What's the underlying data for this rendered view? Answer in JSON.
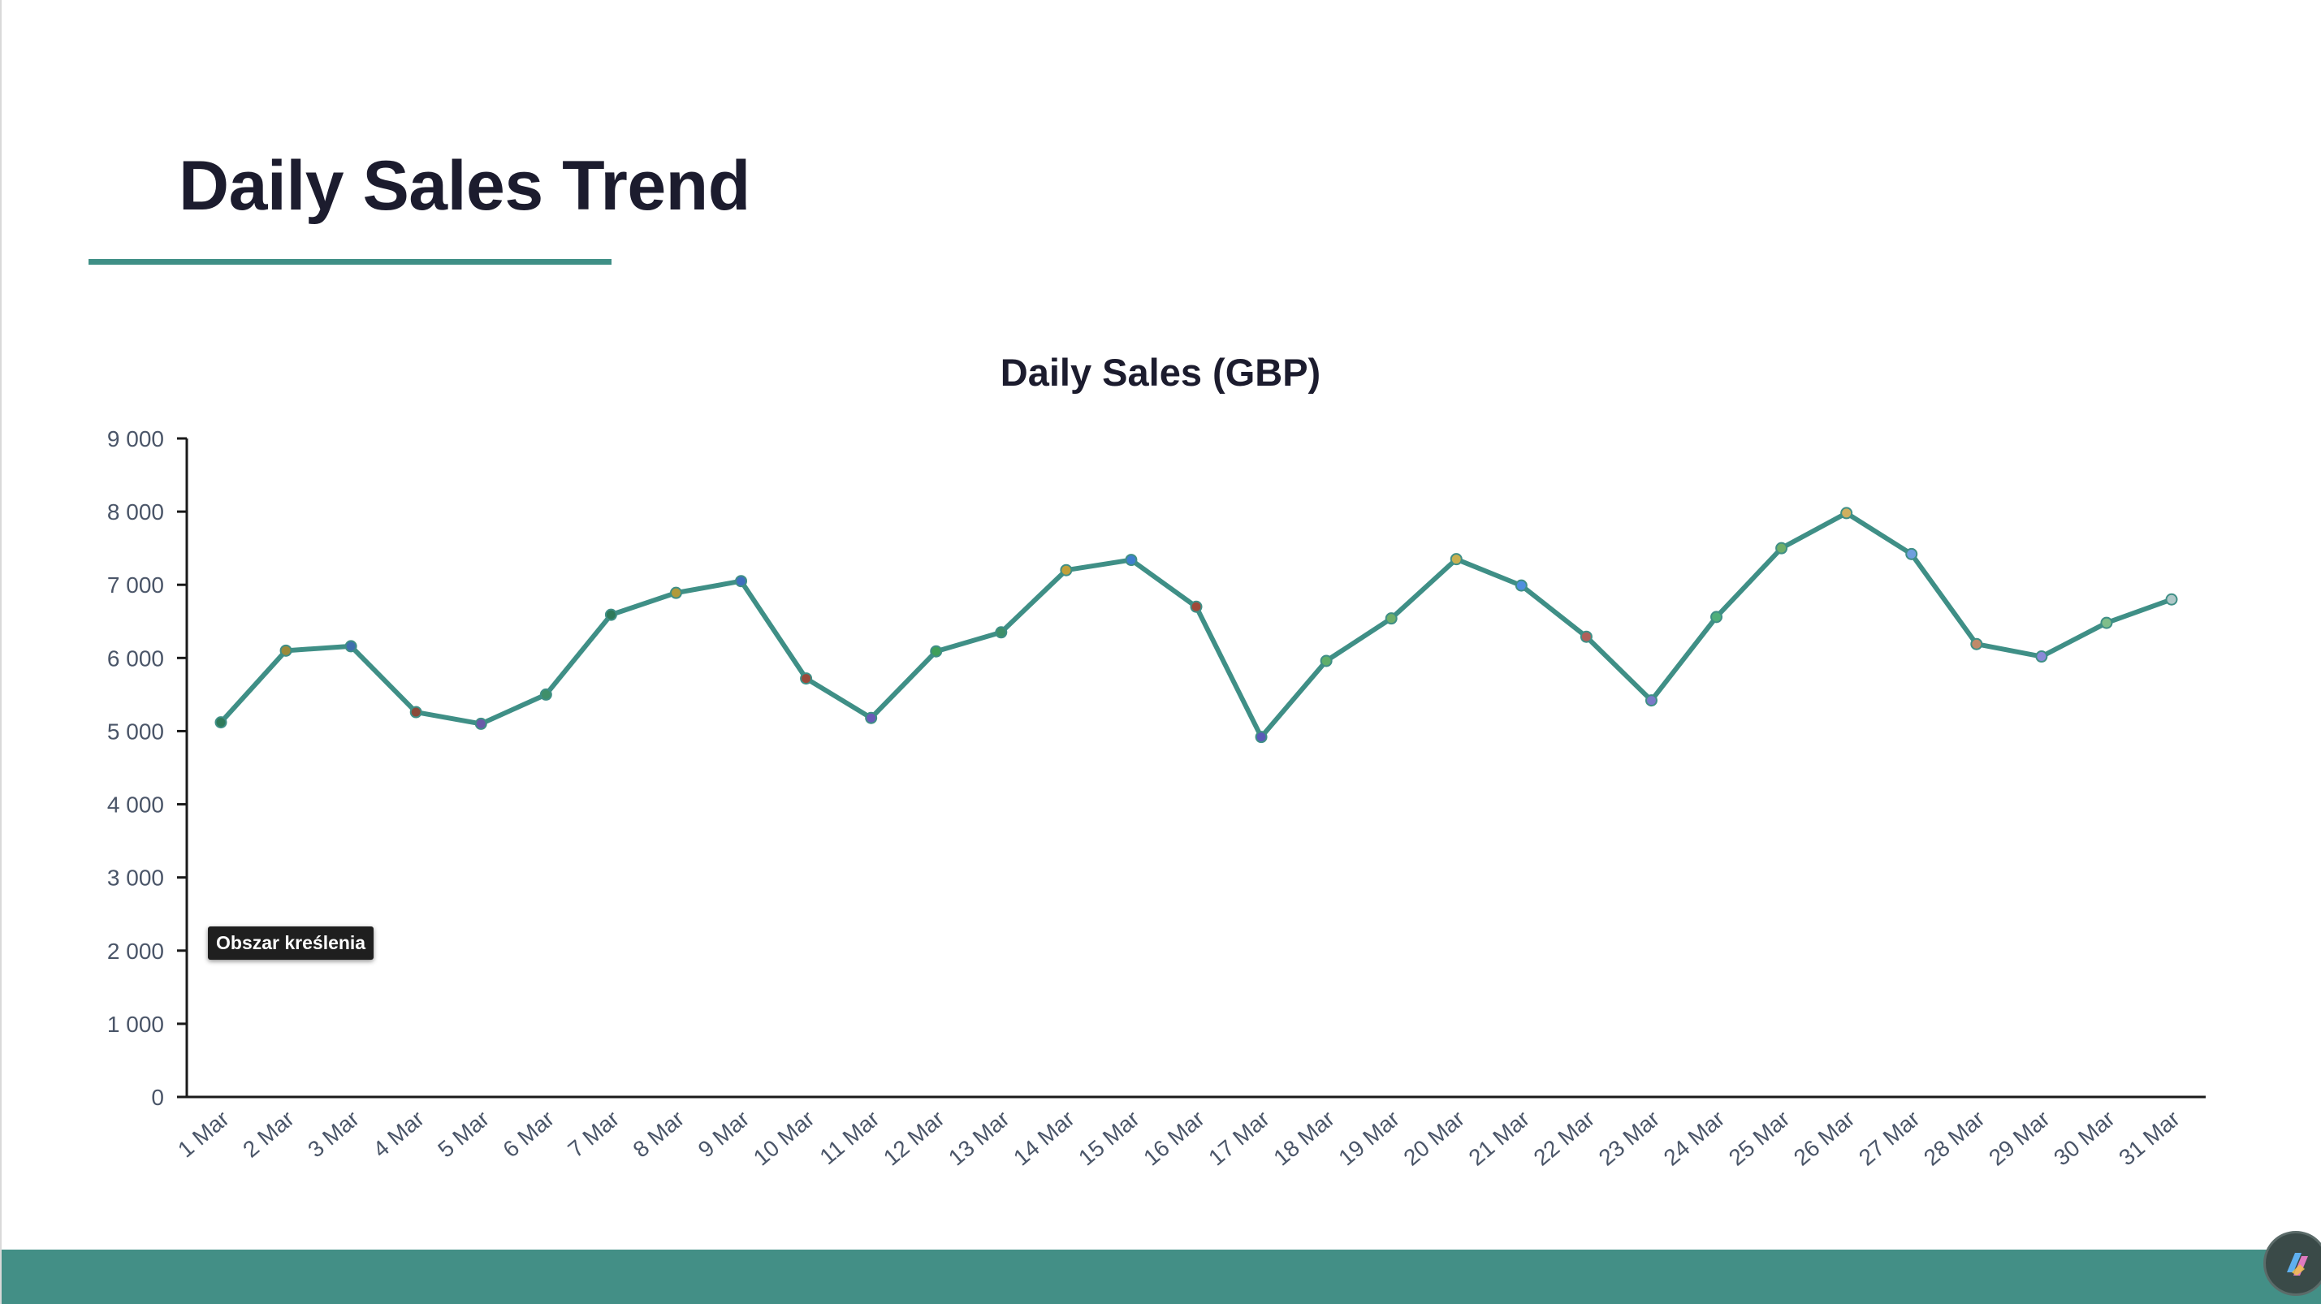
{
  "slide": {
    "title": "Daily Sales Trend",
    "accent_color": "#3f8f86",
    "footer_color": "#438f86"
  },
  "tooltip": {
    "text": "Obszar kreślenia"
  },
  "chart_data": {
    "type": "line",
    "title": "Daily Sales (GBP)",
    "xlabel": "",
    "ylabel": "",
    "ylim": [
      0,
      9000
    ],
    "yticks": [
      0,
      1000,
      2000,
      3000,
      4000,
      5000,
      6000,
      7000,
      8000,
      9000
    ],
    "ytick_labels": [
      "0",
      "1 000",
      "2 000",
      "3 000",
      "4 000",
      "5 000",
      "6 000",
      "7 000",
      "8 000",
      "9 000"
    ],
    "grid": false,
    "legend": "none",
    "line_color": "#3f8f86",
    "categories": [
      "1 Mar",
      "2 Mar",
      "3 Mar",
      "4 Mar",
      "5 Mar",
      "6 Mar",
      "7 Mar",
      "8 Mar",
      "9 Mar",
      "10 Mar",
      "11 Mar",
      "12 Mar",
      "13 Mar",
      "14 Mar",
      "15 Mar",
      "16 Mar",
      "17 Mar",
      "18 Mar",
      "19 Mar",
      "20 Mar",
      "21 Mar",
      "22 Mar",
      "23 Mar",
      "24 Mar",
      "25 Mar",
      "26 Mar",
      "27 Mar",
      "28 Mar",
      "29 Mar",
      "30 Mar",
      "31 Mar"
    ],
    "series": [
      {
        "values": [
          5120,
          6100,
          6160,
          5260,
          5100,
          5500,
          6590,
          6890,
          7050,
          5720,
          5180,
          6090,
          6350,
          7200,
          7340,
          6700,
          4920,
          5960,
          6540,
          7350,
          6990,
          6290,
          5420,
          6560,
          7500,
          7980,
          7420,
          6190,
          6020,
          6480,
          6800
        ],
        "marker_colors": [
          "#2f7a5a",
          "#9a8a3a",
          "#3f6fae",
          "#8a4a3a",
          "#6a5aa8",
          "#3f8f6a",
          "#2f7a5a",
          "#b09a3a",
          "#3f6fbe",
          "#9a4a3a",
          "#6a5ab8",
          "#3f9f5a",
          "#3f8f6a",
          "#c0a03a",
          "#3f7fce",
          "#a04a3a",
          "#5a5ab8",
          "#5fae6a",
          "#6fae6a",
          "#c8b050",
          "#4f8fde",
          "#b0605a",
          "#7a7ac8",
          "#4fae7a",
          "#6fae6a",
          "#d0b060",
          "#6f9fde",
          "#c08a6a",
          "#8a8ad8",
          "#7fbe8a",
          "#afc8c8"
        ]
      }
    ]
  }
}
